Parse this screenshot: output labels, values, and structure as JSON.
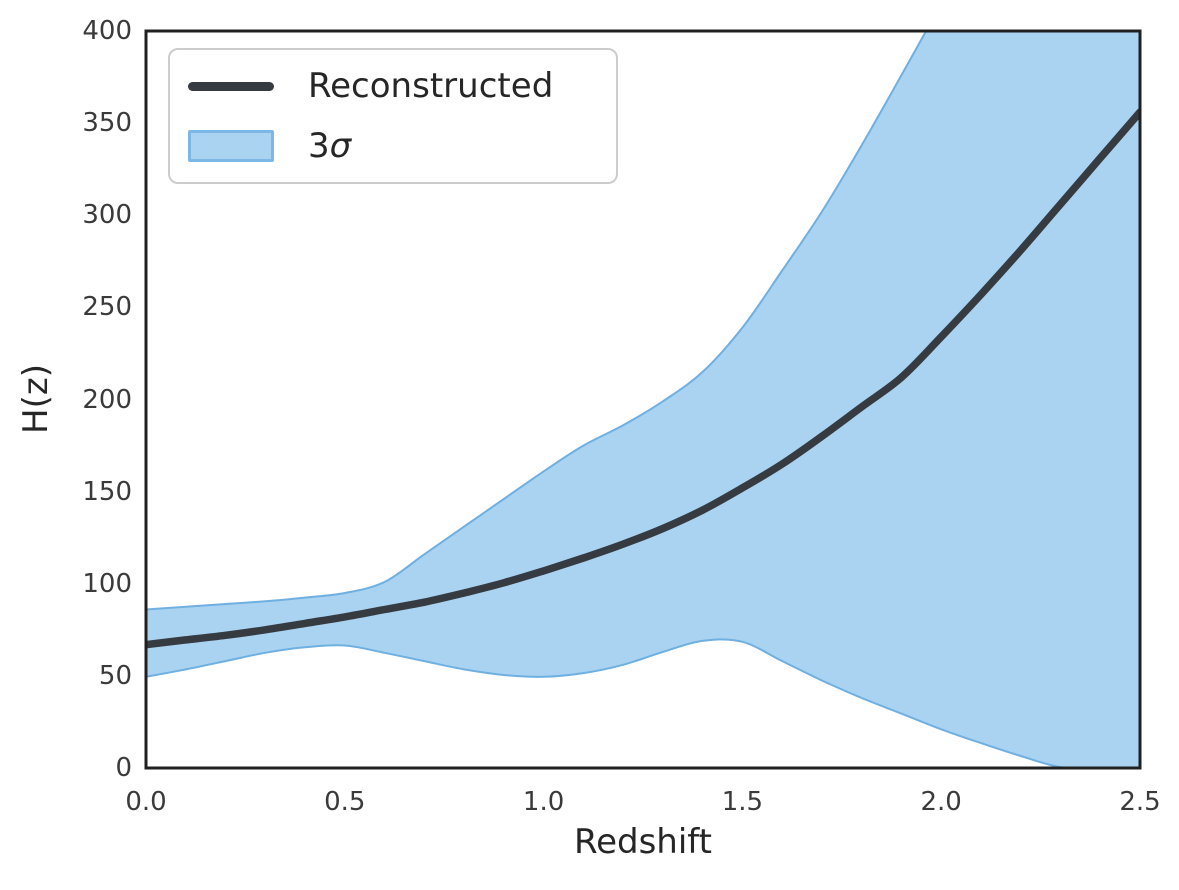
{
  "chart_data": {
    "type": "line",
    "title": "",
    "xlabel": "Redshift",
    "ylabel": "H(z)",
    "xlim": [
      0,
      2.5
    ],
    "ylim": [
      0,
      400
    ],
    "grid": false,
    "axes_color": "#202020",
    "tick_label_color": "#3a3a3a",
    "x_tick_labels": [
      "0.0",
      "0.5",
      "1.0",
      "1.5",
      "2.0",
      "2.5"
    ],
    "x_tick_values": [
      0,
      0.5,
      1.0,
      1.5,
      2.0,
      2.5
    ],
    "y_tick_labels": [
      "0",
      "50",
      "100",
      "150",
      "200",
      "250",
      "300",
      "350",
      "400"
    ],
    "y_tick_values": [
      0,
      50,
      100,
      150,
      200,
      250,
      300,
      350,
      400
    ],
    "x": [
      0.0,
      0.1,
      0.2,
      0.3,
      0.4,
      0.5,
      0.6,
      0.7,
      0.8,
      0.9,
      1.0,
      1.1,
      1.2,
      1.3,
      1.4,
      1.5,
      1.6,
      1.7,
      1.8,
      1.9,
      2.0,
      2.1,
      2.2,
      2.3,
      2.4,
      2.5
    ],
    "series": [
      {
        "name": "Reconstructed",
        "role": "center-line",
        "color": "#363b42",
        "linewidth": 7.5,
        "values": [
          67,
          69.5,
          72,
          75,
          78.5,
          82,
          86,
          90,
          95,
          100.5,
          107,
          114,
          121.5,
          130,
          140,
          152,
          165,
          180,
          196,
          212,
          234,
          257,
          281,
          306,
          331,
          356
        ]
      },
      {
        "name": "3σ upper bound",
        "role": "band-upper",
        "values": [
          86,
          87.5,
          89,
          90.5,
          92.5,
          95,
          101,
          116,
          131,
          146,
          161,
          175,
          186,
          199,
          215,
          239,
          270,
          302,
          338,
          376,
          415,
          456,
          497,
          538,
          580,
          620
        ]
      },
      {
        "name": "3σ lower bound",
        "role": "band-lower",
        "values": [
          49.5,
          53.5,
          58,
          62.5,
          65.5,
          66.5,
          62.5,
          58,
          53.5,
          50.5,
          49.5,
          51.5,
          56,
          63,
          69,
          68.5,
          58,
          47.5,
          38,
          29.5,
          21,
          13.5,
          6.5,
          0.5,
          0,
          0
        ]
      }
    ],
    "band": {
      "fill": "#a9d3f1",
      "edge": "#6fb0e1",
      "edge_width": 2
    },
    "legend": {
      "position": "upper left",
      "entries": [
        {
          "label": "Reconstructed",
          "swatch": "line",
          "color": "#363b42"
        },
        {
          "label": "3σ",
          "swatch": "patch",
          "fill": "#a9d3f1",
          "edge": "#7cb8e6"
        }
      ]
    }
  }
}
